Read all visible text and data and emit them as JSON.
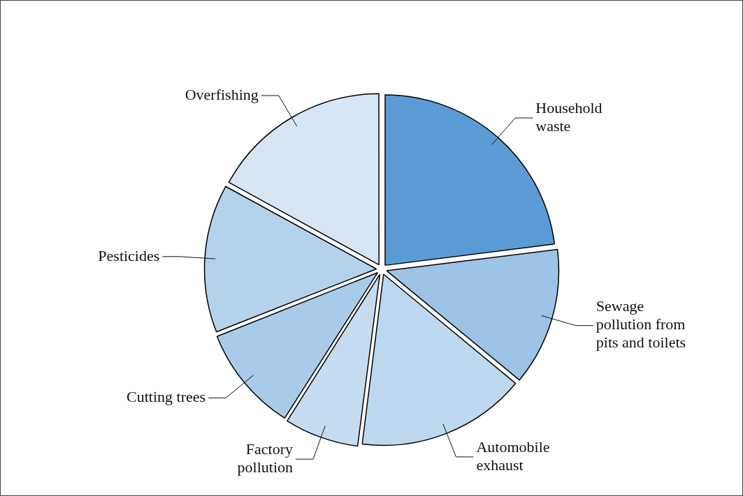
{
  "chart_data": {
    "type": "pie",
    "categories": [
      "Household waste",
      "Sewage pollution from pits and toilets",
      "Automobile exhaust",
      "Factory pollution",
      "Cutting trees",
      "Pesticides",
      "Overfishing"
    ],
    "values": [
      23,
      13,
      16,
      7,
      10,
      14,
      17
    ],
    "colors": [
      "#5b9bd5",
      "#9dc3e6",
      "#bdd7ee",
      "#c5dcf0",
      "#a9cbea",
      "#b4d2ec",
      "#d6e6f5"
    ]
  }
}
